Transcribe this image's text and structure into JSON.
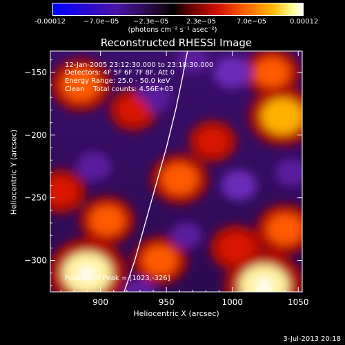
{
  "colorbar": {
    "ticks": [
      "-0.00012",
      "−7.0e−05",
      "−2.3e−05",
      "2.3e−05",
      "7.0e−05",
      "0.00012"
    ],
    "unit_label": "(photons cm⁻² s⁻¹ asec⁻²)",
    "colors": [
      "#0000ff",
      "#5a1a9a",
      "#000000",
      "#7a0000",
      "#ff2a00",
      "#ff9a00",
      "#ffff80",
      "#ffffff"
    ]
  },
  "annotations": {
    "line1": "12-Jan-2005 23:12:30.000 to 23:18:30.000",
    "line2": "Detectors: 4F 5F 6F 7F 8F, Att 0",
    "line3": "Energy Range: 25.0 - 50.0 keV",
    "line4": "Clean    Total counts: 4.56E+03",
    "peak": "Position of Peak = [1023,-326]"
  },
  "footer": {
    "date": "3-Jul-2013 20:18"
  },
  "chart_data": {
    "type": "heatmap",
    "title": "Reconstructed RHESSI Image",
    "xlabel": "Heliocentric X (arcsec)",
    "ylabel": "Heliocentric Y (arcsec)",
    "xlim": [
      862,
      1053
    ],
    "ylim": [
      -325,
      -133
    ],
    "xticks": [
      900,
      950,
      1000,
      1050
    ],
    "yticks": [
      -150,
      -200,
      -250,
      -300
    ],
    "colorbar_range": [
      -0.00012,
      0.00012
    ],
    "limb_curve": {
      "x": [
        918,
        926,
        934,
        942,
        950,
        957,
        962,
        966
      ],
      "y": [
        -325,
        -300,
        -270,
        -240,
        -210,
        -180,
        -155,
        -133
      ]
    },
    "hotspots": [
      {
        "x": 890,
        "y": -310,
        "value": 1.0
      },
      {
        "x": 1024,
        "y": -320,
        "value": 1.0
      },
      {
        "x": 885,
        "y": -160,
        "value": 0.6
      },
      {
        "x": 1038,
        "y": -185,
        "value": 0.75
      },
      {
        "x": 1030,
        "y": -150,
        "value": 0.5
      },
      {
        "x": 960,
        "y": -235,
        "value": 0.55
      },
      {
        "x": 905,
        "y": -268,
        "value": 0.5
      },
      {
        "x": 985,
        "y": -205,
        "value": 0.35
      },
      {
        "x": 945,
        "y": -300,
        "value": 0.5
      },
      {
        "x": 1040,
        "y": -275,
        "value": 0.55
      },
      {
        "x": 1003,
        "y": -290,
        "value": 0.45
      },
      {
        "x": 925,
        "y": -180,
        "value": 0.35
      },
      {
        "x": 870,
        "y": -245,
        "value": 0.4
      }
    ],
    "coldspots": [
      {
        "x": 895,
        "y": -225,
        "value": -0.5
      },
      {
        "x": 940,
        "y": -170,
        "value": -0.5
      },
      {
        "x": 1000,
        "y": -150,
        "value": -0.6
      },
      {
        "x": 1005,
        "y": -240,
        "value": -0.55
      },
      {
        "x": 965,
        "y": -280,
        "value": -0.4
      },
      {
        "x": 1045,
        "y": -230,
        "value": -0.45
      },
      {
        "x": 930,
        "y": -325,
        "value": -0.4
      },
      {
        "x": 970,
        "y": -140,
        "value": -0.4
      }
    ]
  }
}
